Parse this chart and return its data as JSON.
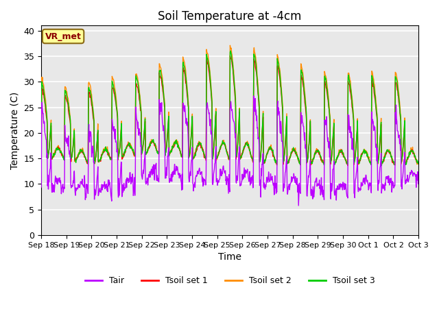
{
  "title": "Soil Temperature at -4cm",
  "xlabel": "Time",
  "ylabel": "Temperature (C)",
  "ylim": [
    0,
    41
  ],
  "yticks": [
    0,
    5,
    10,
    15,
    20,
    25,
    30,
    35,
    40
  ],
  "annotation": "VR_met",
  "annotation_color": "#8B0000",
  "annotation_bg": "#FFFF99",
  "bg_color": "#E8E8E8",
  "series_colors": [
    "#BB00FF",
    "#FF0000",
    "#FF8C00",
    "#00CC00"
  ],
  "series_labels": [
    "Tair",
    "Tsoil set 1",
    "Tsoil set 2",
    "Tsoil set 3"
  ],
  "x_tick_labels": [
    "Sep 18",
    "Sep 19",
    "Sep 20",
    "Sep 21",
    "Sep 22",
    "Sep 23",
    "Sep 24",
    "Sep 25",
    "Sep 26",
    "Sep 27",
    "Sep 28",
    "Sep 29",
    "Sep 30",
    "Oct 1",
    "Oct 2",
    "Oct 3"
  ],
  "days": 16,
  "n_points": 960
}
